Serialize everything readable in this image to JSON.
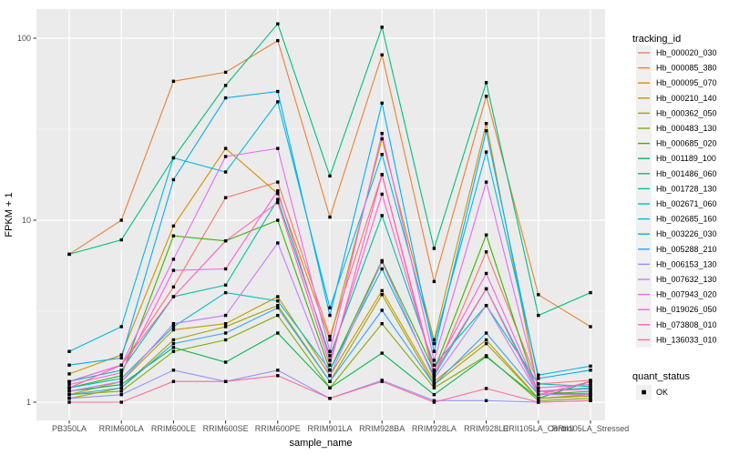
{
  "chart_data": {
    "type": "line",
    "title": "",
    "xlabel": "sample_name",
    "ylabel": "FPKM + 1",
    "y_scale": "log10",
    "ylim": [
      1,
      150
    ],
    "y_breaks": [
      1,
      10,
      100
    ],
    "y_tick_labels": [
      "1",
      "10",
      "100"
    ],
    "y_minor_breaks": [
      3.1623,
      31.623
    ],
    "grid": "on",
    "panel_bg": "#EBEBEB",
    "grid_color": "#FFFFFF",
    "tick_color": "#333333",
    "point_color": "#000000",
    "point_shape": "filled-square",
    "legend_position": "right",
    "legend_key_bg": "#F0F0F0",
    "categories": [
      "PB350LA",
      "RRIM600LA",
      "RRIM600LE",
      "RRIM600SE",
      "RRIM600PE",
      "RRIM901LA",
      "RRIM928BA",
      "RRIM928LA",
      "RRIM928LE",
      "RRII105LA_Control",
      "RRII105LA_Stressed"
    ],
    "series_legend_title": "tracking_id",
    "series": [
      {
        "name": "Hb_000020_030",
        "color": "#F8766D",
        "values": [
          1.3,
          1.6,
          4.3,
          13.3,
          16.2,
          2.3,
          17.8,
          1.4,
          6.7,
          1.26,
          1.32
        ]
      },
      {
        "name": "Hb_000085_380",
        "color": "#EA8331",
        "values": [
          6.5,
          10.0,
          58.0,
          65.0,
          97.0,
          10.4,
          81.0,
          4.6,
          48.0,
          3.9,
          2.6
        ]
      },
      {
        "name": "Hb_000095_070",
        "color": "#D89000",
        "values": [
          1.43,
          1.82,
          9.3,
          24.8,
          14.0,
          2.2,
          28.0,
          2.2,
          34.0,
          1.15,
          1.1
        ]
      },
      {
        "name": "Hb_000210_140",
        "color": "#C09B00",
        "values": [
          1.1,
          1.3,
          2.5,
          2.7,
          3.8,
          1.4,
          4.1,
          1.3,
          2.2,
          1.05,
          1.1
        ]
      },
      {
        "name": "Hb_000362_050",
        "color": "#A3A500",
        "values": [
          1.05,
          1.2,
          2.2,
          2.6,
          3.4,
          1.3,
          3.9,
          1.25,
          2.1,
          1.05,
          1.08
        ]
      },
      {
        "name": "Hb_000483_130",
        "color": "#7CAE00",
        "values": [
          1.1,
          1.15,
          1.9,
          2.2,
          3.0,
          1.2,
          2.7,
          1.2,
          1.8,
          1.02,
          1.05
        ]
      },
      {
        "name": "Hb_000685_020",
        "color": "#39B600",
        "values": [
          1.2,
          1.4,
          8.2,
          7.7,
          10.0,
          1.5,
          6.0,
          1.5,
          8.3,
          1.1,
          1.15
        ]
      },
      {
        "name": "Hb_001189_100",
        "color": "#00BB4E",
        "values": [
          1.15,
          1.25,
          2.0,
          1.66,
          2.4,
          1.2,
          1.86,
          1.1,
          1.78,
          1.05,
          1.3
        ]
      },
      {
        "name": "Hb_001486_060",
        "color": "#00BF7D",
        "values": [
          6.5,
          7.8,
          22.0,
          55.0,
          120.0,
          17.5,
          115.0,
          7.0,
          57.0,
          3.0,
          4.0
        ]
      },
      {
        "name": "Hb_001728_130",
        "color": "#00C1A3",
        "values": [
          1.3,
          1.5,
          3.8,
          4.4,
          13.0,
          1.8,
          10.6,
          1.6,
          3.4,
          1.26,
          1.22
        ]
      },
      {
        "name": "Hb_002671_060",
        "color": "#00BFC4",
        "values": [
          1.2,
          1.35,
          2.6,
          4.0,
          3.6,
          1.5,
          5.4,
          1.4,
          4.2,
          1.15,
          1.2
        ]
      },
      {
        "name": "Hb_002685_160",
        "color": "#00BAE0",
        "values": [
          1.9,
          2.6,
          22.0,
          18.4,
          44.7,
          3.3,
          23.0,
          2.1,
          23.7,
          1.41,
          1.58
        ]
      },
      {
        "name": "Hb_003226_030",
        "color": "#00B0F6",
        "values": [
          1.6,
          1.75,
          16.7,
          47.0,
          51.0,
          3.0,
          44.0,
          1.9,
          31.0,
          1.35,
          1.5
        ]
      },
      {
        "name": "Hb_005288_210",
        "color": "#35A2FF",
        "values": [
          1.1,
          1.2,
          2.1,
          2.4,
          3.3,
          1.3,
          3.2,
          1.25,
          2.4,
          1.1,
          1.12
        ]
      },
      {
        "name": "Hb_006153_130",
        "color": "#9590FF",
        "values": [
          1.05,
          1.1,
          1.5,
          1.3,
          1.5,
          1.05,
          1.32,
          1.02,
          1.02,
          1.0,
          1.02
        ]
      },
      {
        "name": "Hb_007632_130",
        "color": "#C77CFF",
        "values": [
          1.15,
          1.3,
          2.7,
          3.0,
          7.5,
          1.4,
          5.9,
          1.35,
          3.4,
          1.1,
          1.1
        ]
      },
      {
        "name": "Hb_007943_020",
        "color": "#E76BF3",
        "values": [
          1.3,
          1.6,
          6.1,
          22.4,
          24.8,
          1.9,
          30.0,
          1.7,
          16.2,
          1.2,
          1.25
        ]
      },
      {
        "name": "Hb_019026_050",
        "color": "#FA62DB",
        "values": [
          1.25,
          1.45,
          5.3,
          5.4,
          14.5,
          1.7,
          13.9,
          1.5,
          5.1,
          1.15,
          1.18
        ]
      },
      {
        "name": "Hb_073808_010",
        "color": "#FF62BC",
        "values": [
          1.2,
          1.6,
          3.8,
          7.7,
          12.5,
          1.6,
          17.8,
          1.45,
          4.2,
          1.1,
          1.3
        ]
      },
      {
        "name": "Hb_136033_010",
        "color": "#FF6A98",
        "values": [
          1.0,
          1.0,
          1.3,
          1.3,
          1.4,
          1.05,
          1.3,
          1.0,
          1.19,
          1.0,
          1.02
        ]
      }
    ],
    "point_legend": {
      "title": "quant_status",
      "items": [
        {
          "label": "OK",
          "symbol": "square",
          "color": "#000000"
        }
      ]
    }
  }
}
